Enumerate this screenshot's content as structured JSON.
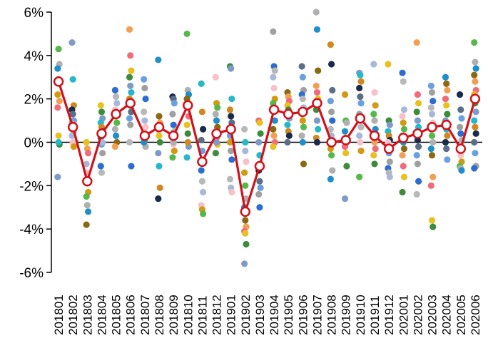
{
  "chart_data": {
    "type": "scatter",
    "title": "",
    "xlabel": "",
    "ylabel": "",
    "ylim": [
      -6,
      6
    ],
    "ytick_labels": [
      "6%",
      "4%",
      "2%",
      "0%",
      "-2%",
      "-4%",
      "-6%"
    ],
    "ytick_values": [
      6,
      4,
      2,
      0,
      -2,
      -4,
      -6
    ],
    "grid": false,
    "legend": "none",
    "categories": [
      "201801",
      "201802",
      "201803",
      "201804",
      "201805",
      "201806",
      "201807",
      "201808",
      "201809",
      "201810",
      "201811",
      "201812",
      "201901",
      "201902",
      "201903",
      "201904",
      "201905",
      "201906",
      "201907",
      "201908",
      "201909",
      "201910",
      "201911",
      "201912",
      "202001",
      "202002",
      "202003",
      "202004",
      "202005",
      "202006"
    ],
    "line_series": {
      "color": "#d0121b",
      "values": [
        2.8,
        0.7,
        -1.8,
        0.4,
        1.3,
        1.8,
        0.3,
        0.7,
        0.3,
        1.7,
        -0.9,
        0.4,
        0.6,
        -3.2,
        -1.1,
        1.5,
        1.3,
        1.4,
        1.8,
        0.0,
        0.1,
        1.1,
        0.3,
        -0.3,
        0.2,
        0.4,
        0.7,
        0.8,
        -0.3,
        2.0
      ]
    },
    "scatter_points": [
      [
        2.2,
        4.3,
        3.6,
        3.4,
        2.9,
        1.9,
        1.6,
        0.3,
        -0.1,
        -1.6,
        0.0
      ],
      [
        4.6,
        2.9,
        1.7,
        1.5,
        1.3,
        1.0,
        0.9,
        0.7,
        0.5,
        0.3,
        0.0,
        -0.2
      ],
      [
        -1.0,
        -1.4,
        -2.3,
        -2.5,
        -2.9,
        -3.2,
        -3.8,
        -0.3,
        -0.5,
        0.0
      ],
      [
        1.7,
        1.4,
        1.1,
        0.9,
        0.7,
        0.5,
        0.2,
        -0.1,
        -0.5,
        -1.1,
        -1.4,
        0.0
      ],
      [
        2.4,
        2.1,
        1.8,
        1.5,
        1.2,
        0.9,
        0.6,
        0.3,
        0.0,
        -0.2
      ],
      [
        5.2,
        4.0,
        3.3,
        3.0,
        2.6,
        2.3,
        2.0,
        1.7,
        1.4,
        1.1,
        0.8,
        -1.1,
        0.0
      ],
      [
        2.9,
        2.5,
        2.0,
        1.4,
        1.0,
        0.7,
        0.4,
        0.1,
        -0.2,
        0.0
      ],
      [
        3.8,
        1.2,
        0.9,
        0.6,
        0.3,
        0.0,
        -0.5,
        -1.1,
        -2.1,
        -2.6
      ],
      [
        2.1,
        2.0,
        1.8,
        1.3,
        0.8,
        0.5,
        0.2,
        -0.1,
        -0.4,
        -0.7,
        0.0
      ],
      [
        5.0,
        2.4,
        2.2,
        2.0,
        1.6,
        1.2,
        0.8,
        0.4,
        -0.2,
        -0.7,
        0.0
      ],
      [
        2.7,
        1.4,
        0.6,
        0.1,
        -0.4,
        -0.9,
        -1.3,
        -1.8,
        -2.3,
        -2.9,
        -3.1,
        -3.3
      ],
      [
        3.0,
        1.8,
        1.6,
        1.3,
        1.0,
        0.7,
        0.5,
        0.2,
        -0.1,
        -0.5,
        0.0
      ],
      [
        3.5,
        3.4,
        2.0,
        1.5,
        1.2,
        0.9,
        0.3,
        -0.4,
        -0.8,
        -1.7,
        -2.1,
        -2.3,
        0.0
      ],
      [
        0.6,
        -0.4,
        -0.9,
        -1.4,
        -2.0,
        -2.6,
        -3.0,
        -3.6,
        -3.9,
        -4.1,
        -4.2,
        -4.7,
        -5.6,
        0.0
      ],
      [
        1.0,
        0.9,
        0.4,
        0.0,
        -0.6,
        -1.0,
        -1.3,
        -1.8,
        -2.1,
        -2.4,
        -3.0
      ],
      [
        5.1,
        3.5,
        3.3,
        3.0,
        2.5,
        2.0,
        1.8,
        1.4,
        1.0,
        0.6,
        0.3,
        0.0,
        -0.2
      ],
      [
        2.3,
        2.1,
        1.9,
        1.7,
        1.5,
        1.1,
        0.8,
        0.5,
        0.3,
        0.0
      ],
      [
        3.5,
        3.0,
        2.4,
        2.2,
        2.0,
        1.6,
        1.3,
        1.0,
        0.7,
        0.3,
        0.0,
        -1.0
      ],
      [
        6.0,
        5.2,
        3.3,
        2.6,
        2.3,
        2.0,
        1.5,
        1.0,
        0.6,
        0.2,
        0.0
      ],
      [
        4.5,
        3.6,
        2.4,
        1.9,
        1.4,
        1.0,
        0.6,
        0.3,
        0.0,
        -0.3,
        -0.6,
        -1.3,
        -1.7
      ],
      [
        2.2,
        1.0,
        0.9,
        0.5,
        0.2,
        0.0,
        -0.2,
        -0.5,
        -1.1,
        -2.6
      ],
      [
        3.2,
        3.1,
        2.8,
        2.5,
        2.1,
        1.8,
        1.3,
        1.0,
        0.7,
        0.3,
        0.0,
        -0.4,
        -1.6
      ],
      [
        3.6,
        2.3,
        1.7,
        1.3,
        1.0,
        0.6,
        0.3,
        0.0,
        -0.3,
        -0.6,
        -1.0
      ],
      [
        3.6,
        1.0,
        0.8,
        0.5,
        0.3,
        0.1,
        -0.2,
        -0.5,
        -0.9,
        -1.2,
        -1.4,
        -1.6,
        0.0
      ],
      [
        3.2,
        2.8,
        1.5,
        1.2,
        0.9,
        0.6,
        0.3,
        0.0,
        -0.3,
        -0.6,
        -1.1,
        -1.6,
        -2.3
      ],
      [
        4.6,
        2.2,
        1.8,
        1.4,
        1.0,
        0.7,
        0.4,
        0.1,
        -0.2,
        -0.6,
        -1.0,
        -1.8,
        -2.4
      ],
      [
        2.6,
        2.3,
        1.9,
        1.6,
        1.3,
        0.9,
        0.6,
        0.3,
        0.0,
        -0.3,
        -0.6,
        -1.6,
        -2.0,
        -3.6,
        -3.9
      ],
      [
        3.0,
        2.7,
        2.4,
        2.0,
        1.7,
        1.3,
        1.0,
        0.6,
        0.3,
        0.0,
        -0.3,
        -0.8
      ],
      [
        2.2,
        1.5,
        1.1,
        0.7,
        0.4,
        0.1,
        -0.2,
        -0.6,
        -0.9,
        -1.1,
        -1.2,
        -1.3
      ],
      [
        4.6,
        3.7,
        3.4,
        3.1,
        2.8,
        2.4,
        2.2,
        1.8,
        1.4,
        1.0,
        0.7,
        0.4,
        0.0,
        -0.5,
        -1.1,
        -1.2
      ]
    ],
    "point_colors": [
      "#d09a12",
      "#1e8fc8",
      "#f06c7a",
      "#7e9bc8",
      "#1a2a4a",
      "#a0a0a0",
      "#a8b8d8",
      "#56b84a",
      "#8b6914",
      "#e8c020",
      "#26b8c8",
      "#5a6e88",
      "#2d6dd0",
      "#f8c0c8",
      "#b0b0b0",
      "#f0a050",
      "#3c8c3c",
      "#d08820",
      "#6aa0e0",
      "#b8b8b8"
    ]
  }
}
